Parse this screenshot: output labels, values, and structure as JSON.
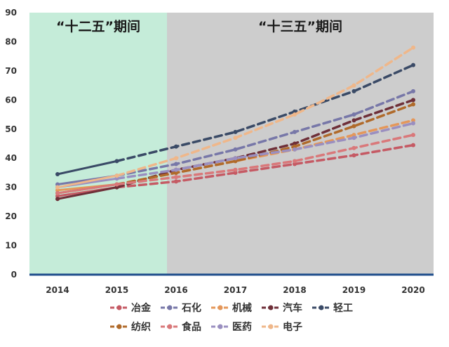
{
  "chart_data": {
    "type": "line",
    "x": [
      "2014",
      "2015",
      "2016",
      "2017",
      "2018",
      "2019",
      "2020"
    ],
    "ylim": [
      0,
      90
    ],
    "yticks": [
      0,
      10,
      20,
      30,
      40,
      50,
      60,
      70,
      80,
      90
    ],
    "grid": false,
    "legend_position": "bottom",
    "periods": [
      {
        "label": "“十二五”期间",
        "from": "2014",
        "to": "2016",
        "color": "#c5ecd9"
      },
      {
        "label": "“十三五”期间",
        "from": "2016",
        "to": "2020",
        "color": "#cdcdcd"
      }
    ],
    "series": [
      {
        "name": "冶金",
        "color": "#c55a64",
        "values": [
          27,
          30,
          32,
          35,
          38,
          41,
          44.5
        ]
      },
      {
        "name": "石化",
        "color": "#7777a8",
        "values": [
          31,
          34,
          38,
          43,
          49,
          55,
          63
        ]
      },
      {
        "name": "机械",
        "color": "#e4975a",
        "values": [
          29,
          31,
          35,
          39,
          43,
          48,
          53
        ]
      },
      {
        "name": "汽车",
        "color": "#6e2f38",
        "values": [
          26,
          30,
          36,
          40,
          45,
          53,
          60
        ]
      },
      {
        "name": "轻工",
        "color": "#3a4a66",
        "values": [
          34.5,
          39,
          44,
          49,
          56,
          63,
          72
        ]
      },
      {
        "name": "纺织",
        "color": "#b06a2a",
        "values": [
          28,
          31,
          35,
          39,
          44,
          51,
          58.5
        ]
      },
      {
        "name": "食品",
        "color": "#d9787a",
        "values": [
          28,
          31,
          33.5,
          36,
          39,
          43.5,
          48
        ]
      },
      {
        "name": "医药",
        "color": "#9a8fc0",
        "values": [
          30,
          33,
          36,
          40,
          43,
          47,
          52
        ]
      },
      {
        "name": "电子",
        "color": "#efb78a",
        "values": [
          30,
          34,
          40,
          47,
          55,
          65,
          78
        ]
      }
    ]
  }
}
